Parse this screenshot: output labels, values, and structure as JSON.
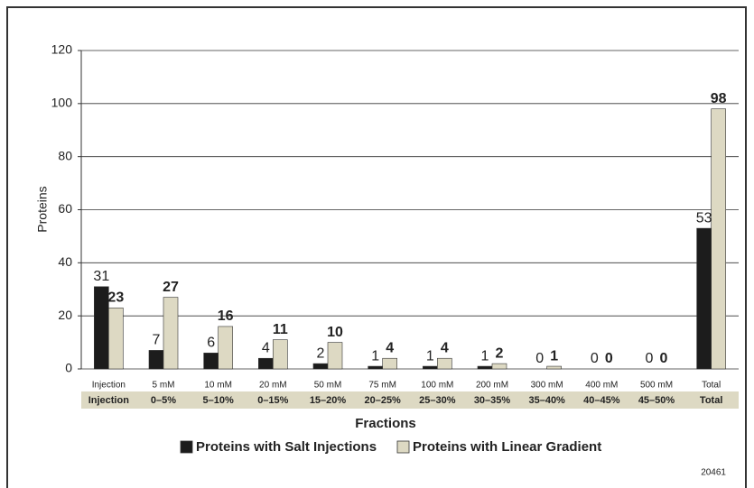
{
  "chart_data": {
    "type": "bar",
    "x_label": "Fractions",
    "y_label": "Proteins",
    "figure_id": "20461",
    "categories": [
      "Injection",
      "5 mM",
      "10 mM",
      "20 mM",
      "50 mM",
      "75 mM",
      "100 mM",
      "200 mM",
      "300 mM",
      "400 mM",
      "500 mM",
      "Total"
    ],
    "category_sublabels": [
      "Injection",
      "0–5%",
      "5–10%",
      "0–15%",
      "15–20%",
      "20–25%",
      "25–30%",
      "30–35%",
      "35–40%",
      "40–45%",
      "45–50%",
      "Total"
    ],
    "series": [
      {
        "name": "Proteins with Salt Injections",
        "color": "#1c1c1c",
        "values": [
          31,
          7,
          6,
          4,
          2,
          1,
          1,
          1,
          0,
          0,
          0,
          53
        ]
      },
      {
        "name": "Proteins with Linear Gradient",
        "color": "#ddd9c3",
        "values": [
          23,
          27,
          16,
          11,
          10,
          4,
          4,
          2,
          1,
          0,
          0,
          98
        ]
      }
    ],
    "ylim": [
      0,
      120
    ],
    "yticks": [
      0,
      20,
      40,
      60,
      80,
      100,
      120
    ],
    "grid": true
  }
}
